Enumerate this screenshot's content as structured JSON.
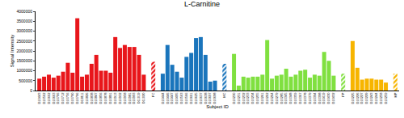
{
  "chart_data": {
    "type": "bar",
    "title": "L-Carnitine",
    "xlabel": "Subject ID",
    "ylabel": "Signal Intensity",
    "ylim": [
      0,
      4000000
    ],
    "yticks": [
      0,
      500000,
      1000000,
      1500000,
      2000000,
      2500000,
      3000000,
      3500000,
      4000000
    ],
    "grid": false,
    "series": [
      {
        "color": "#e8161b",
        "categories": [
          "D10443",
          "D10562",
          "D10662",
          "D10663",
          "D10706",
          "D10712",
          "D10756",
          "D10790",
          "D10796",
          "D10811",
          "D10826",
          "D10838",
          "D10847",
          "D10856",
          "D10878",
          "D10891",
          "D10913",
          "D10932",
          "D10958",
          "D10981",
          "D10993",
          "D11019",
          "D11020"
        ],
        "values": [
          600000,
          700000,
          800000,
          650000,
          750000,
          950000,
          1400000,
          900000,
          3650000,
          700000,
          800000,
          1350000,
          1800000,
          1000000,
          1000000,
          900000,
          2700000,
          2150000,
          2300000,
          2200000,
          2200000,
          1800000,
          800000
        ]
      },
      {
        "color": "#e8161b",
        "marker": "hatched",
        "categories": [
          "FC"
        ],
        "values": [
          1450000
        ]
      },
      {
        "color": "#1a75bc",
        "categories": [
          "D10444",
          "D10446",
          "D10447",
          "D10495",
          "D10563",
          "D10566",
          "D10601",
          "D10625",
          "D10637",
          "D10638",
          "D10697",
          "D10698"
        ],
        "values": [
          850000,
          2300000,
          1300000,
          950000,
          650000,
          1700000,
          1900000,
          2650000,
          2700000,
          1800000,
          450000,
          500000
        ]
      },
      {
        "color": "#1a75bc",
        "marker": "hatched",
        "categories": [
          "MC"
        ],
        "values": [
          1350000
        ]
      },
      {
        "color": "#80e040",
        "categories": [
          "D10230",
          "D10231",
          "D10232",
          "D10233",
          "D10234",
          "D10255",
          "D10261",
          "D10262",
          "D10264",
          "D10279",
          "D10285",
          "D10345",
          "D10348",
          "D10359",
          "D10367",
          "D10378",
          "D10379",
          "D10394",
          "D10398",
          "D10419",
          "D10430",
          "D10432"
        ],
        "values": [
          1850000,
          250000,
          700000,
          650000,
          700000,
          700000,
          800000,
          2550000,
          600000,
          750000,
          800000,
          1100000,
          700000,
          800000,
          1000000,
          1050000,
          650000,
          800000,
          750000,
          1950000,
          1500000,
          750000
        ]
      },
      {
        "color": "#80e040",
        "marker": "hatched",
        "categories": [
          "FP"
        ],
        "values": [
          850000
        ]
      },
      {
        "color": "#f7b500",
        "categories": [
          "D10225",
          "D10226",
          "D10227",
          "D10229",
          "D10243",
          "D10244",
          "D10258",
          "D10259"
        ],
        "values": [
          2500000,
          1150000,
          550000,
          600000,
          600000,
          550000,
          550000,
          400000
        ]
      },
      {
        "color": "#f7b500",
        "marker": "hatched",
        "categories": [
          "MP"
        ],
        "values": [
          850000
        ]
      }
    ]
  }
}
